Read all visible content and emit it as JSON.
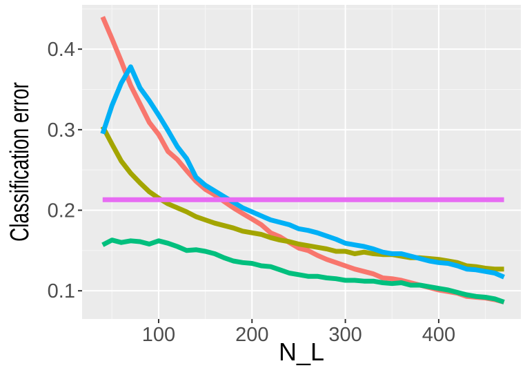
{
  "chart_data": {
    "type": "line",
    "title": "",
    "xlabel": "N_L",
    "ylabel": "Classification error",
    "xlim": [
      18,
      488
    ],
    "ylim": [
      0.065,
      0.455
    ],
    "x_ticks": [
      100,
      200,
      300,
      400
    ],
    "y_ticks": [
      0.1,
      0.2,
      0.3,
      0.4
    ],
    "x_tick_labels": [
      "100",
      "200",
      "300",
      "400"
    ],
    "y_tick_labels": [
      "0.1",
      "0.2",
      "0.3",
      "0.4"
    ],
    "grid": true,
    "legend": "none",
    "background": "#ebebeb",
    "x": [
      40,
      50,
      60,
      70,
      80,
      90,
      100,
      110,
      120,
      130,
      140,
      150,
      160,
      170,
      180,
      190,
      200,
      210,
      220,
      230,
      240,
      250,
      260,
      270,
      280,
      290,
      300,
      310,
      320,
      330,
      340,
      350,
      360,
      370,
      380,
      390,
      400,
      410,
      420,
      430,
      440,
      450,
      460,
      470
    ],
    "series": [
      {
        "color": "#f8766d",
        "values": [
          0.44,
          0.413,
          0.385,
          0.355,
          0.332,
          0.309,
          0.294,
          0.273,
          0.263,
          0.249,
          0.236,
          0.226,
          0.219,
          0.211,
          0.203,
          0.196,
          0.189,
          0.182,
          0.172,
          0.167,
          0.16,
          0.153,
          0.15,
          0.144,
          0.139,
          0.135,
          0.131,
          0.127,
          0.124,
          0.121,
          0.116,
          0.115,
          0.113,
          0.11,
          0.107,
          0.104,
          0.101,
          0.099,
          0.097,
          0.093,
          0.092,
          0.091,
          0.089,
          0.086
        ]
      },
      {
        "color": "#a3a500",
        "values": [
          0.304,
          0.282,
          0.261,
          0.246,
          0.234,
          0.223,
          0.215,
          0.208,
          0.203,
          0.198,
          0.192,
          0.188,
          0.184,
          0.181,
          0.178,
          0.174,
          0.172,
          0.17,
          0.166,
          0.163,
          0.161,
          0.158,
          0.156,
          0.154,
          0.152,
          0.149,
          0.149,
          0.146,
          0.148,
          0.146,
          0.145,
          0.145,
          0.143,
          0.141,
          0.141,
          0.14,
          0.139,
          0.137,
          0.135,
          0.131,
          0.13,
          0.128,
          0.127,
          0.127
        ]
      },
      {
        "color": "#00bf7d",
        "values": [
          0.157,
          0.163,
          0.16,
          0.162,
          0.161,
          0.158,
          0.162,
          0.159,
          0.155,
          0.15,
          0.151,
          0.149,
          0.146,
          0.141,
          0.137,
          0.135,
          0.134,
          0.131,
          0.13,
          0.126,
          0.122,
          0.12,
          0.118,
          0.118,
          0.116,
          0.115,
          0.113,
          0.113,
          0.112,
          0.112,
          0.11,
          0.109,
          0.11,
          0.107,
          0.107,
          0.105,
          0.103,
          0.101,
          0.098,
          0.095,
          0.093,
          0.092,
          0.09,
          0.086
        ]
      },
      {
        "color": "#00b0f6",
        "values": [
          0.295,
          0.33,
          0.358,
          0.378,
          0.352,
          0.336,
          0.318,
          0.299,
          0.279,
          0.264,
          0.241,
          0.231,
          0.224,
          0.217,
          0.21,
          0.203,
          0.198,
          0.193,
          0.188,
          0.185,
          0.182,
          0.177,
          0.175,
          0.172,
          0.168,
          0.164,
          0.159,
          0.157,
          0.155,
          0.152,
          0.148,
          0.146,
          0.146,
          0.143,
          0.14,
          0.137,
          0.135,
          0.134,
          0.131,
          0.127,
          0.126,
          0.124,
          0.122,
          0.117
        ]
      },
      {
        "color": "#e76bf3",
        "values": [
          0.213,
          0.213,
          0.213,
          0.213,
          0.213,
          0.213,
          0.213,
          0.213,
          0.213,
          0.213,
          0.213,
          0.213,
          0.213,
          0.213,
          0.213,
          0.213,
          0.213,
          0.213,
          0.213,
          0.213,
          0.213,
          0.213,
          0.213,
          0.213,
          0.213,
          0.213,
          0.213,
          0.213,
          0.213,
          0.213,
          0.213,
          0.213,
          0.213,
          0.213,
          0.213,
          0.213,
          0.213,
          0.213,
          0.213,
          0.213,
          0.213,
          0.213,
          0.213,
          0.213
        ]
      }
    ]
  }
}
